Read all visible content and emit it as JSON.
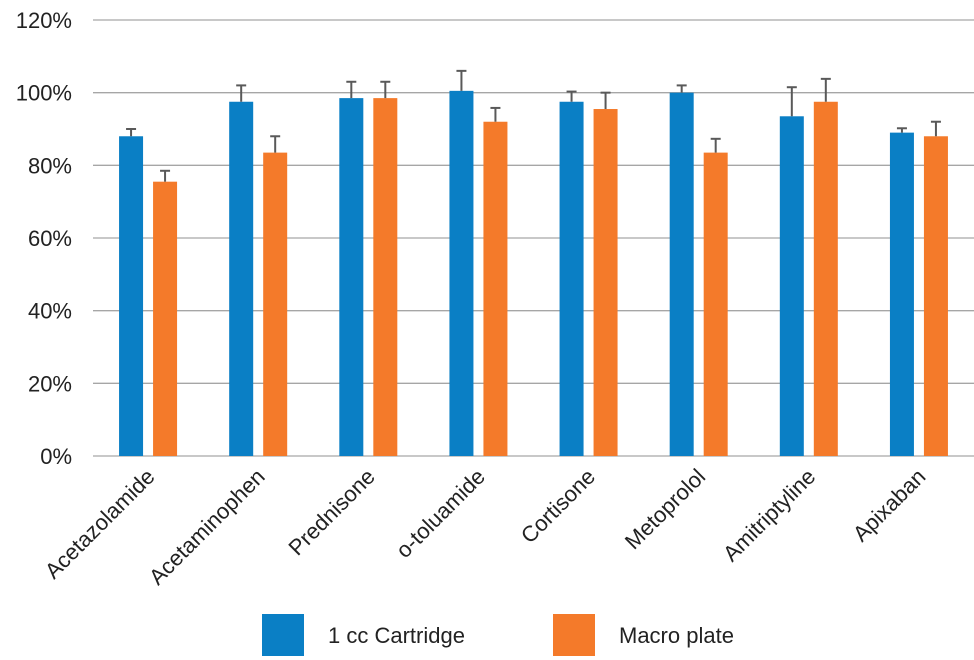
{
  "chart_data": {
    "type": "bar",
    "categories": [
      "Acetazolamide",
      "Acetaminophen",
      "Prednisone",
      "o-toluamide",
      "Cortisone",
      "Metoprolol",
      "Amitriptyline",
      "Apixaban"
    ],
    "series": [
      {
        "name": "1 cc Cartridge",
        "color": "#0a7fc5",
        "values": [
          88,
          97.5,
          98.5,
          100.5,
          97.5,
          100,
          93.5,
          89
        ],
        "errors": [
          2,
          4.5,
          4.5,
          5.5,
          2.8,
          2,
          8,
          1.2
        ]
      },
      {
        "name": "Macro plate",
        "color": "#f47a2a",
        "values": [
          75.5,
          83.5,
          98.5,
          92,
          95.5,
          83.5,
          97.5,
          88
        ],
        "errors": [
          3,
          4.5,
          4.5,
          3.8,
          4.5,
          3.8,
          6.3,
          4
        ]
      }
    ],
    "y_ticks": [
      "0%",
      "20%",
      "40%",
      "60%",
      "80%",
      "100%",
      "120%"
    ],
    "ylim": [
      0,
      120
    ],
    "grid": true,
    "legend_position": "bottom",
    "title": "",
    "xlabel": "",
    "ylabel": "",
    "gridline_color": "#a6a6a6",
    "error_bar_color": "#595959"
  }
}
